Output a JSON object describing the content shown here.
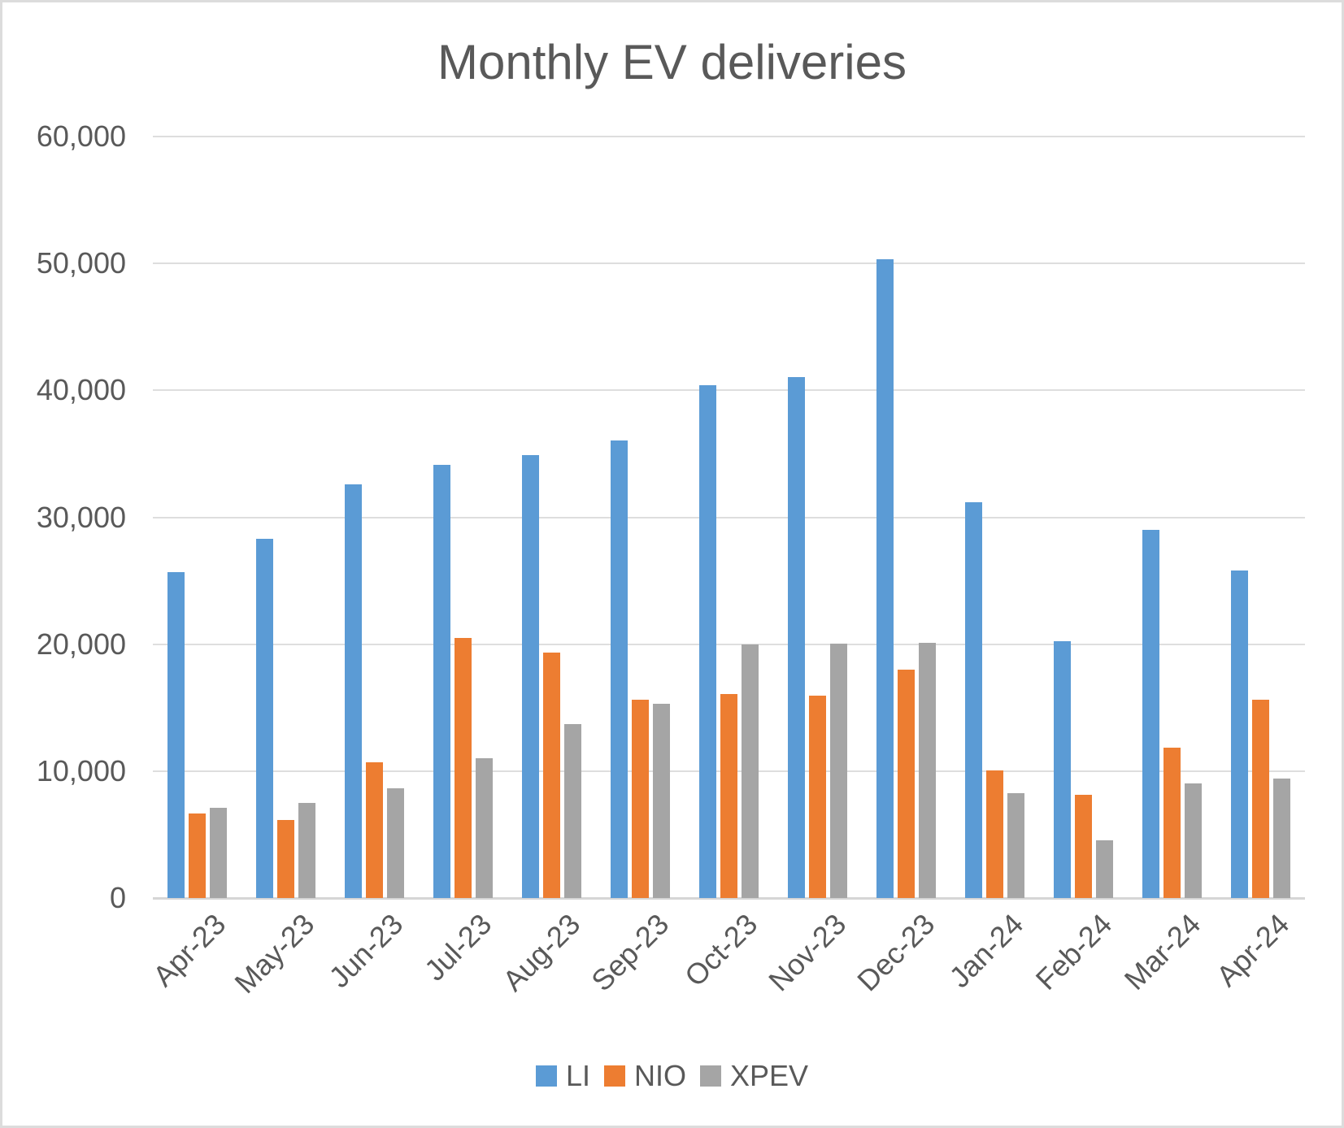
{
  "chart_data": {
    "type": "bar",
    "title": "Monthly EV deliveries",
    "categories": [
      "Apr-23",
      "May-23",
      "Jun-23",
      "Jul-23",
      "Aug-23",
      "Sep-23",
      "Oct-23",
      "Nov-23",
      "Dec-23",
      "Jan-24",
      "Feb-24",
      "Mar-24",
      "Apr-24"
    ],
    "series": [
      {
        "name": "LI",
        "color": "#5B9BD5",
        "values": [
          25681,
          28277,
          32575,
          34134,
          34914,
          36060,
          40422,
          41030,
          50353,
          31165,
          20251,
          28984,
          25787
        ]
      },
      {
        "name": "NIO",
        "color": "#ED7D31",
        "values": [
          6658,
          6155,
          10707,
          20462,
          19329,
          15641,
          16074,
          15959,
          18012,
          10055,
          8132,
          11866,
          15620
        ]
      },
      {
        "name": "XPEV",
        "color": "#A5A5A5",
        "values": [
          7079,
          7506,
          8620,
          11008,
          13690,
          15310,
          20002,
          20041,
          20115,
          8250,
          4545,
          9026,
          9393
        ]
      }
    ],
    "xlabel": "",
    "ylabel": "",
    "ylim": [
      0,
      60000
    ],
    "y_ticks": [
      0,
      10000,
      20000,
      30000,
      40000,
      50000,
      60000
    ],
    "y_tick_labels": [
      "0",
      "10,000",
      "20,000",
      "30,000",
      "40,000",
      "50,000",
      "60,000"
    ],
    "grid": true,
    "legend_position": "bottom",
    "x_label_rotation_deg": -45
  },
  "style": {
    "text_color": "#595959",
    "gridline_color": "#DEDEDE",
    "axis_line_color": "#D6D6D6",
    "background_color": "#FFFFFF",
    "border_color": "#DCDCDC"
  }
}
